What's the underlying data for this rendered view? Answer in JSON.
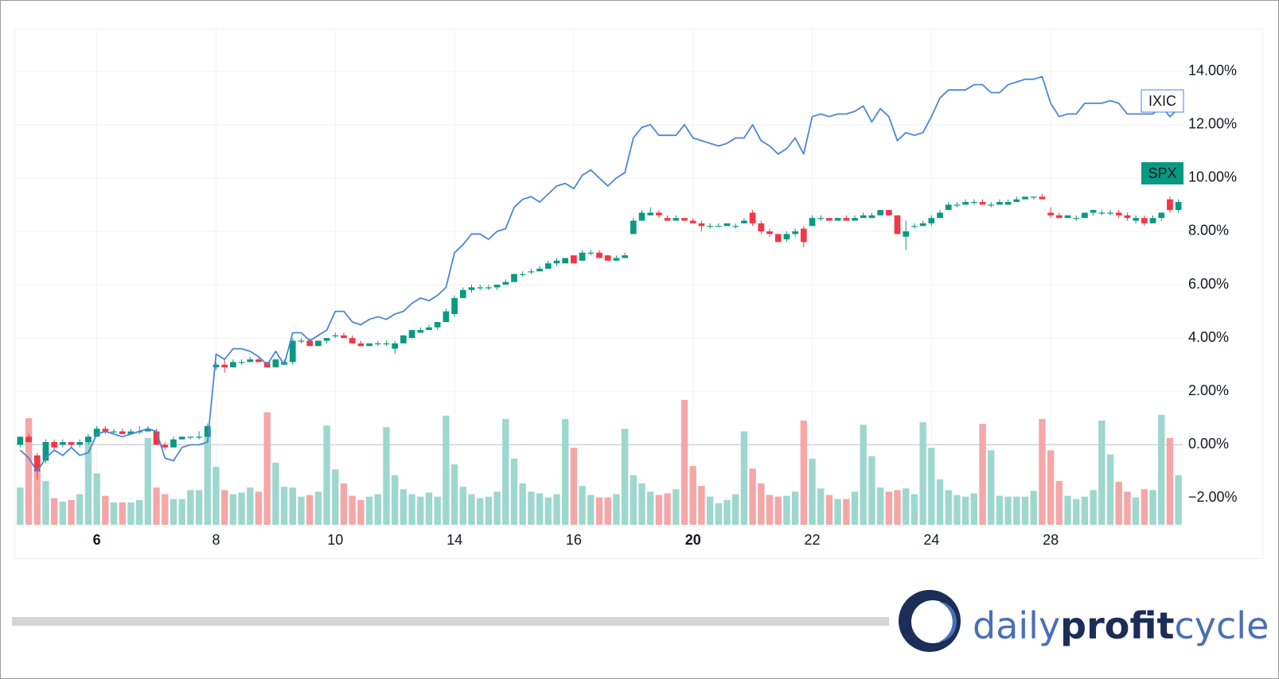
{
  "chart_data": {
    "type": "candlestick",
    "categories": [
      null,
      null,
      null,
      null,
      null,
      null,
      null,
      null,
      null,
      "6",
      null,
      null,
      null,
      null,
      null,
      null,
      null,
      null,
      null,
      null,
      null,
      null,
      null,
      "8",
      null,
      null,
      null,
      null,
      null,
      null,
      null,
      null,
      null,
      null,
      null,
      null,
      null,
      "10",
      null,
      null,
      null,
      null,
      null,
      null,
      null,
      null,
      null,
      null,
      null,
      null,
      null,
      "14",
      null,
      null,
      null,
      null,
      null,
      null,
      null,
      null,
      null,
      null,
      null,
      null,
      null,
      "16",
      null,
      null,
      null,
      null,
      null,
      null,
      null,
      null,
      null,
      null,
      null,
      null,
      null,
      "20",
      null,
      null,
      null,
      null,
      null,
      null,
      null,
      null,
      null,
      null,
      null,
      null,
      null,
      "22",
      null,
      null,
      null,
      null,
      null,
      null,
      null,
      null,
      null,
      null,
      null,
      null,
      null,
      "24",
      null,
      null,
      null,
      null,
      null,
      null,
      null,
      null,
      null,
      null,
      null,
      null,
      null,
      "28",
      null,
      null,
      null,
      null,
      null,
      null,
      null,
      null,
      null,
      null,
      null,
      null,
      null,
      null,
      null
    ],
    "emphasized_categories": [
      9,
      79
    ],
    "series": [
      {
        "name": "SPX",
        "type": "candlestick",
        "color_up": "#089981",
        "color_down": "#f23645",
        "open": [
          0.0,
          0.3,
          -0.4,
          -0.6,
          0.1,
          0.0,
          0.1,
          0.0,
          0.1,
          0.3,
          0.6,
          0.5,
          0.5,
          0.4,
          0.5,
          0.5,
          0.5,
          0.0,
          -0.1,
          0.2,
          0.3,
          0.3,
          0.3,
          2.9,
          3.0,
          2.9,
          3.1,
          3.1,
          3.2,
          3.1,
          2.9,
          3.0,
          3.1,
          3.9,
          3.9,
          3.7,
          3.9,
          4.1,
          4.1,
          4.0,
          3.8,
          3.7,
          3.8,
          3.8,
          3.6,
          3.8,
          4.0,
          4.2,
          4.3,
          4.4,
          4.6,
          4.9,
          5.5,
          5.8,
          5.9,
          5.9,
          5.9,
          6.0,
          6.1,
          6.4,
          6.5,
          6.5,
          6.6,
          6.8,
          6.8,
          7.1,
          6.9,
          7.2,
          7.2,
          7.1,
          6.9,
          7.0,
          7.9,
          8.4,
          8.6,
          8.7,
          8.5,
          8.4,
          8.5,
          8.4,
          8.3,
          8.2,
          8.2,
          8.2,
          8.2,
          8.3,
          8.7,
          8.3,
          8.0,
          7.9,
          7.7,
          7.9,
          8.1,
          8.2,
          8.5,
          8.5,
          8.4,
          8.5,
          8.4,
          8.5,
          8.5,
          8.6,
          8.8,
          8.6,
          7.8,
          8.2,
          8.2,
          8.3,
          8.5,
          8.8,
          9.0,
          9.0,
          9.1,
          9.1,
          9.0,
          9.0,
          9.0,
          9.1,
          9.2,
          9.3,
          9.3,
          8.7,
          8.6,
          8.5,
          8.5,
          8.5,
          8.7,
          8.7,
          8.7,
          8.7,
          8.6,
          8.4,
          8.5,
          8.3,
          8.5,
          9.2,
          8.8
        ],
        "high": [
          0.3,
          0.4,
          -0.3,
          0.2,
          0.2,
          0.2,
          0.1,
          0.2,
          0.4,
          0.7,
          0.7,
          0.6,
          0.6,
          0.6,
          0.7,
          0.7,
          0.6,
          0.1,
          0.3,
          0.3,
          0.3,
          0.5,
          0.8,
          3.1,
          3.2,
          3.2,
          3.2,
          3.3,
          3.3,
          3.1,
          3.2,
          3.2,
          4.0,
          4.0,
          4.0,
          3.9,
          4.0,
          4.2,
          4.2,
          4.1,
          3.9,
          3.8,
          3.9,
          3.9,
          3.9,
          4.1,
          4.3,
          4.4,
          4.5,
          4.6,
          5.1,
          5.6,
          5.9,
          6.0,
          6.0,
          6.0,
          6.0,
          6.2,
          6.4,
          6.5,
          6.6,
          6.7,
          6.9,
          7.0,
          7.0,
          7.1,
          7.3,
          7.3,
          7.3,
          7.1,
          7.1,
          7.2,
          8.5,
          8.8,
          8.9,
          8.8,
          8.6,
          8.6,
          8.5,
          8.5,
          8.4,
          8.3,
          8.3,
          8.3,
          8.3,
          8.5,
          8.8,
          8.4,
          8.1,
          7.9,
          8.0,
          8.1,
          8.2,
          8.6,
          8.6,
          8.5,
          8.5,
          8.6,
          8.6,
          8.7,
          8.7,
          8.8,
          8.8,
          8.6,
          8.4,
          8.3,
          8.4,
          8.6,
          8.8,
          9.1,
          9.1,
          9.2,
          9.2,
          9.2,
          9.1,
          9.2,
          9.2,
          9.3,
          9.3,
          9.3,
          9.4,
          8.9,
          8.7,
          8.6,
          8.6,
          8.7,
          8.8,
          8.8,
          8.8,
          8.8,
          8.7,
          8.6,
          8.6,
          8.6,
          8.7,
          9.3,
          9.2
        ],
        "low": [
          -0.1,
          0.1,
          -1.3,
          -0.7,
          -0.2,
          -0.1,
          -0.1,
          -0.1,
          0.0,
          0.3,
          0.4,
          0.4,
          0.4,
          0.4,
          0.4,
          0.5,
          0.0,
          -0.2,
          -0.1,
          0.2,
          0.2,
          0.2,
          0.3,
          2.8,
          2.7,
          2.9,
          3.0,
          3.1,
          3.1,
          2.9,
          2.9,
          3.0,
          3.0,
          3.8,
          3.7,
          3.7,
          3.8,
          4.0,
          4.0,
          3.8,
          3.7,
          3.7,
          3.7,
          3.7,
          3.4,
          3.8,
          4.0,
          4.2,
          4.3,
          4.3,
          4.6,
          4.8,
          5.5,
          5.7,
          5.8,
          5.8,
          5.8,
          6.0,
          6.1,
          6.3,
          6.4,
          6.5,
          6.6,
          6.7,
          6.8,
          6.8,
          6.9,
          7.1,
          7.0,
          6.9,
          6.9,
          7.0,
          7.9,
          8.4,
          8.6,
          8.5,
          8.4,
          8.4,
          8.4,
          8.3,
          8.0,
          8.1,
          8.2,
          8.2,
          8.1,
          8.3,
          8.2,
          7.9,
          7.8,
          7.6,
          7.6,
          7.8,
          7.4,
          8.2,
          8.4,
          8.4,
          8.4,
          8.4,
          8.4,
          8.5,
          8.5,
          8.6,
          8.6,
          7.9,
          7.3,
          8.1,
          8.2,
          8.2,
          8.5,
          8.8,
          8.9,
          9.0,
          9.0,
          9.0,
          8.9,
          9.0,
          9.0,
          9.1,
          9.2,
          9.2,
          9.2,
          8.5,
          8.5,
          8.5,
          8.4,
          8.5,
          8.6,
          8.6,
          8.6,
          8.5,
          8.4,
          8.3,
          8.2,
          8.3,
          8.4,
          8.7,
          8.7
        ],
        "close": [
          0.3,
          0.1,
          -1.0,
          0.1,
          -0.1,
          0.1,
          0.0,
          0.1,
          0.3,
          0.6,
          0.5,
          0.5,
          0.4,
          0.5,
          0.5,
          0.6,
          0.0,
          -0.1,
          0.2,
          0.3,
          0.3,
          0.3,
          0.7,
          3.0,
          2.9,
          3.1,
          3.1,
          3.2,
          3.1,
          2.9,
          3.2,
          3.1,
          3.9,
          3.9,
          3.7,
          3.9,
          4.0,
          4.1,
          4.0,
          3.8,
          3.7,
          3.8,
          3.8,
          3.8,
          3.8,
          4.1,
          4.3,
          4.3,
          4.4,
          4.6,
          5.0,
          5.5,
          5.8,
          5.9,
          5.9,
          5.9,
          6.0,
          6.1,
          6.4,
          6.4,
          6.5,
          6.6,
          6.8,
          6.9,
          7.0,
          6.8,
          7.2,
          7.2,
          7.0,
          6.9,
          7.0,
          7.1,
          8.4,
          8.7,
          8.7,
          8.6,
          8.4,
          8.5,
          8.4,
          8.3,
          8.2,
          8.2,
          8.2,
          8.3,
          8.2,
          8.4,
          8.3,
          8.0,
          7.9,
          7.6,
          7.9,
          8.0,
          7.6,
          8.5,
          8.5,
          8.4,
          8.5,
          8.4,
          8.5,
          8.6,
          8.6,
          8.8,
          8.6,
          7.9,
          8.0,
          8.2,
          8.3,
          8.5,
          8.7,
          9.0,
          9.0,
          9.1,
          9.1,
          9.0,
          9.0,
          9.1,
          9.1,
          9.2,
          9.3,
          9.3,
          9.2,
          8.6,
          8.5,
          8.6,
          8.5,
          8.7,
          8.8,
          8.7,
          8.7,
          8.6,
          8.5,
          8.5,
          8.3,
          8.5,
          8.7,
          8.8,
          9.1
        ]
      },
      {
        "name": "IXIC",
        "type": "line",
        "color": "#4a86d8",
        "values": [
          -0.2,
          -0.5,
          -1.0,
          -0.5,
          -0.2,
          -0.4,
          -0.1,
          -0.4,
          -0.3,
          0.4,
          0.5,
          0.4,
          0.3,
          0.4,
          0.5,
          0.6,
          0.5,
          -0.5,
          -0.6,
          -0.1,
          0.0,
          0.0,
          0.1,
          3.4,
          3.2,
          3.6,
          3.6,
          3.5,
          3.3,
          3.0,
          3.5,
          3.0,
          4.2,
          4.2,
          3.9,
          4.1,
          4.3,
          5.0,
          5.0,
          4.6,
          4.5,
          4.7,
          4.8,
          4.7,
          4.9,
          5.0,
          5.3,
          5.5,
          5.4,
          5.6,
          5.9,
          7.2,
          7.5,
          7.9,
          7.9,
          7.7,
          8.0,
          8.1,
          8.9,
          9.2,
          9.3,
          9.1,
          9.4,
          9.7,
          9.8,
          9.6,
          10.1,
          10.3,
          10.0,
          9.7,
          10.0,
          10.2,
          11.5,
          11.9,
          12.0,
          11.6,
          11.6,
          11.6,
          12.0,
          11.5,
          11.4,
          11.3,
          11.2,
          11.3,
          11.5,
          11.5,
          12.0,
          11.4,
          11.2,
          10.9,
          11.1,
          11.5,
          10.9,
          12.3,
          12.4,
          12.3,
          12.4,
          12.4,
          12.5,
          12.7,
          12.1,
          12.6,
          12.3,
          11.4,
          11.7,
          11.6,
          11.7,
          12.3,
          13.0,
          13.3,
          13.3,
          13.3,
          13.5,
          13.5,
          13.2,
          13.2,
          13.5,
          13.6,
          13.7,
          13.7,
          13.8,
          12.8,
          12.3,
          12.4,
          12.4,
          12.8,
          12.8,
          12.8,
          12.9,
          12.8,
          12.4,
          12.4,
          12.4,
          12.4,
          12.7,
          12.3,
          12.6
        ]
      }
    ],
    "volume": [
      45,
      129,
      65,
      53,
      32,
      28,
      30,
      37,
      107,
      62,
      35,
      27,
      27,
      27,
      30,
      105,
      45,
      37,
      31,
      31,
      42,
      42,
      117,
      70,
      42,
      37,
      39,
      45,
      40,
      136,
      75,
      46,
      45,
      34,
      36,
      40,
      120,
      67,
      50,
      35,
      30,
      34,
      37,
      118,
      60,
      43,
      37,
      34,
      39,
      34,
      132,
      73,
      46,
      37,
      32,
      34,
      40,
      128,
      80,
      50,
      40,
      38,
      33,
      37,
      128,
      93,
      47,
      36,
      33,
      33,
      37,
      116,
      60,
      50,
      40,
      36,
      38,
      43,
      151,
      71,
      47,
      34,
      26,
      30,
      37,
      113,
      68,
      50,
      36,
      34,
      35,
      40,
      126,
      80,
      44,
      36,
      31,
      31,
      40,
      121,
      83,
      45,
      40,
      42,
      44,
      37,
      124,
      93,
      55,
      42,
      36,
      34,
      38,
      122,
      90,
      35,
      34,
      34,
      34,
      41,
      128,
      90,
      53,
      35,
      31,
      34,
      42,
      126,
      85,
      52,
      40,
      33,
      43,
      42,
      133,
      105,
      60
    ],
    "volume_colors": {
      "up": "#9dd7ce",
      "down": "#f5a6a6"
    },
    "ylim": [
      -3,
      15.6
    ],
    "yticks": [
      {
        "value": -2,
        "label": "−2.00%"
      },
      {
        "value": 0,
        "label": "0.00%"
      },
      {
        "value": 2,
        "label": "2.00%"
      },
      {
        "value": 4,
        "label": "4.00%"
      },
      {
        "value": 6,
        "label": "6.00%"
      },
      {
        "value": 8,
        "label": "8.00%"
      },
      {
        "value": 10,
        "label": "10.00%"
      },
      {
        "value": 12,
        "label": "12.00%"
      },
      {
        "value": 14,
        "label": "14.00%"
      }
    ],
    "grid": true
  },
  "branding": [
    "daily",
    "profit",
    "cycle"
  ]
}
